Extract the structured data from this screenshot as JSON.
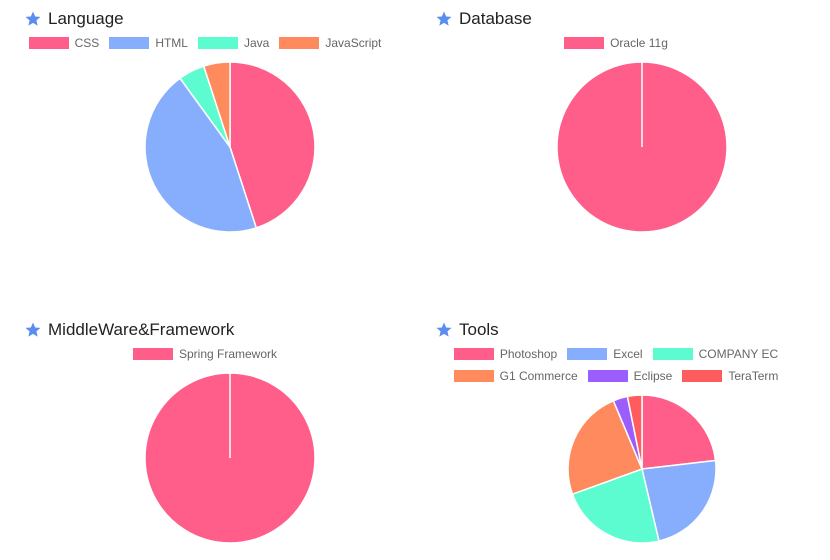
{
  "colors": {
    "star": "#5b8def",
    "palette": [
      "#ff5d8a",
      "#86aefc",
      "#5cfcd0",
      "#ff8a5d",
      "#9b5dfc",
      "#ff5d5d"
    ]
  },
  "icons": {
    "title": "star-icon"
  },
  "chart_data": [
    {
      "type": "pie",
      "title": "Language",
      "legend_position": "top",
      "categories": [
        "CSS",
        "HTML",
        "Java",
        "JavaScript"
      ],
      "values": [
        45,
        45,
        5,
        5
      ]
    },
    {
      "type": "pie",
      "title": "Database",
      "legend_position": "top",
      "categories": [
        "Oracle 11g"
      ],
      "values": [
        100
      ]
    },
    {
      "type": "pie",
      "title": "MiddleWare&Framework",
      "legend_position": "top",
      "categories": [
        "Spring Framework"
      ],
      "values": [
        100
      ]
    },
    {
      "type": "pie",
      "title": "Tools",
      "legend_position": "top",
      "categories": [
        "Photoshop",
        "Excel",
        "COMPANY EC",
        "G1 Commerce",
        "Eclipse",
        "TeraTerm"
      ],
      "values": [
        22,
        22,
        22,
        23,
        3,
        3
      ]
    }
  ]
}
